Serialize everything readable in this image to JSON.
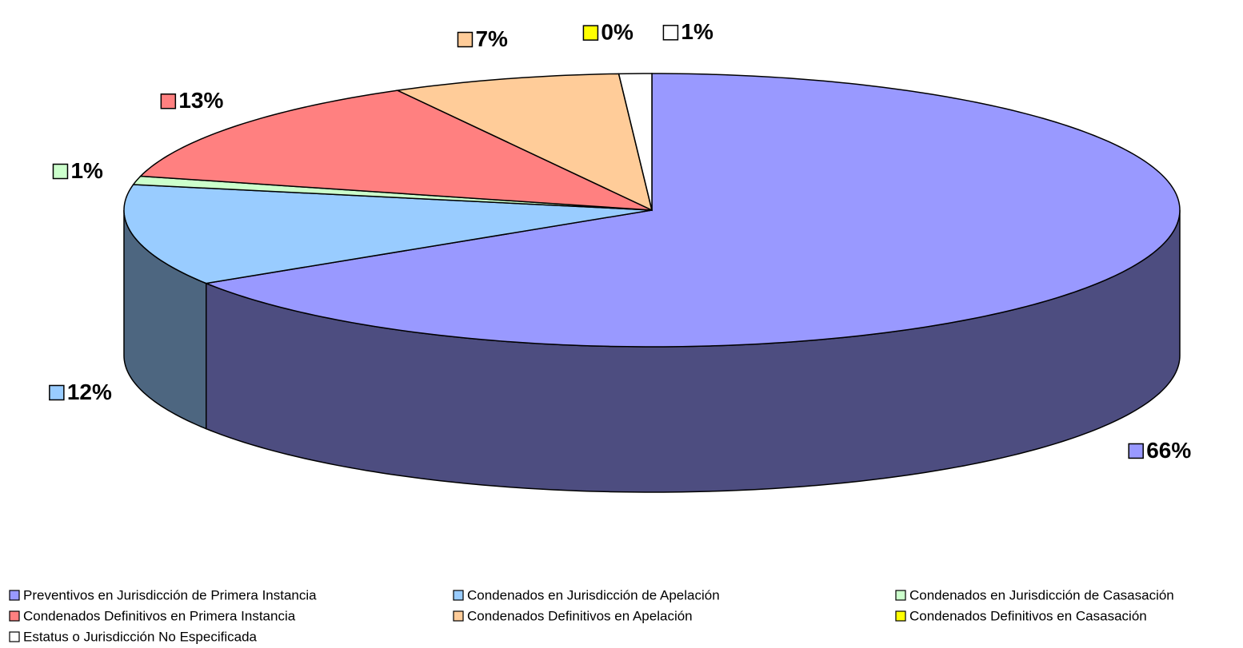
{
  "chart_data": {
    "type": "pie3d",
    "categories": [
      "Preventivos  en Jurisdicción de Primera Instancia",
      "Condenados en Jurisdicción de Apelación",
      "Condenados en Jurisdicción de Casasación",
      "Condenados Definitivos en Primera Instancia",
      "Condenados Definitivos en Apelación",
      "Condenados Definitivos en Casasación",
      "Estatus o Jurisdicción No Especificada"
    ],
    "values": [
      66,
      12,
      1,
      13,
      7,
      0,
      1
    ],
    "colors": [
      "#9999ff",
      "#99ccff",
      "#ccffcc",
      "#ff8080",
      "#ffcc99",
      "#ffff00",
      "#ffffff"
    ],
    "legend": "bottom"
  }
}
